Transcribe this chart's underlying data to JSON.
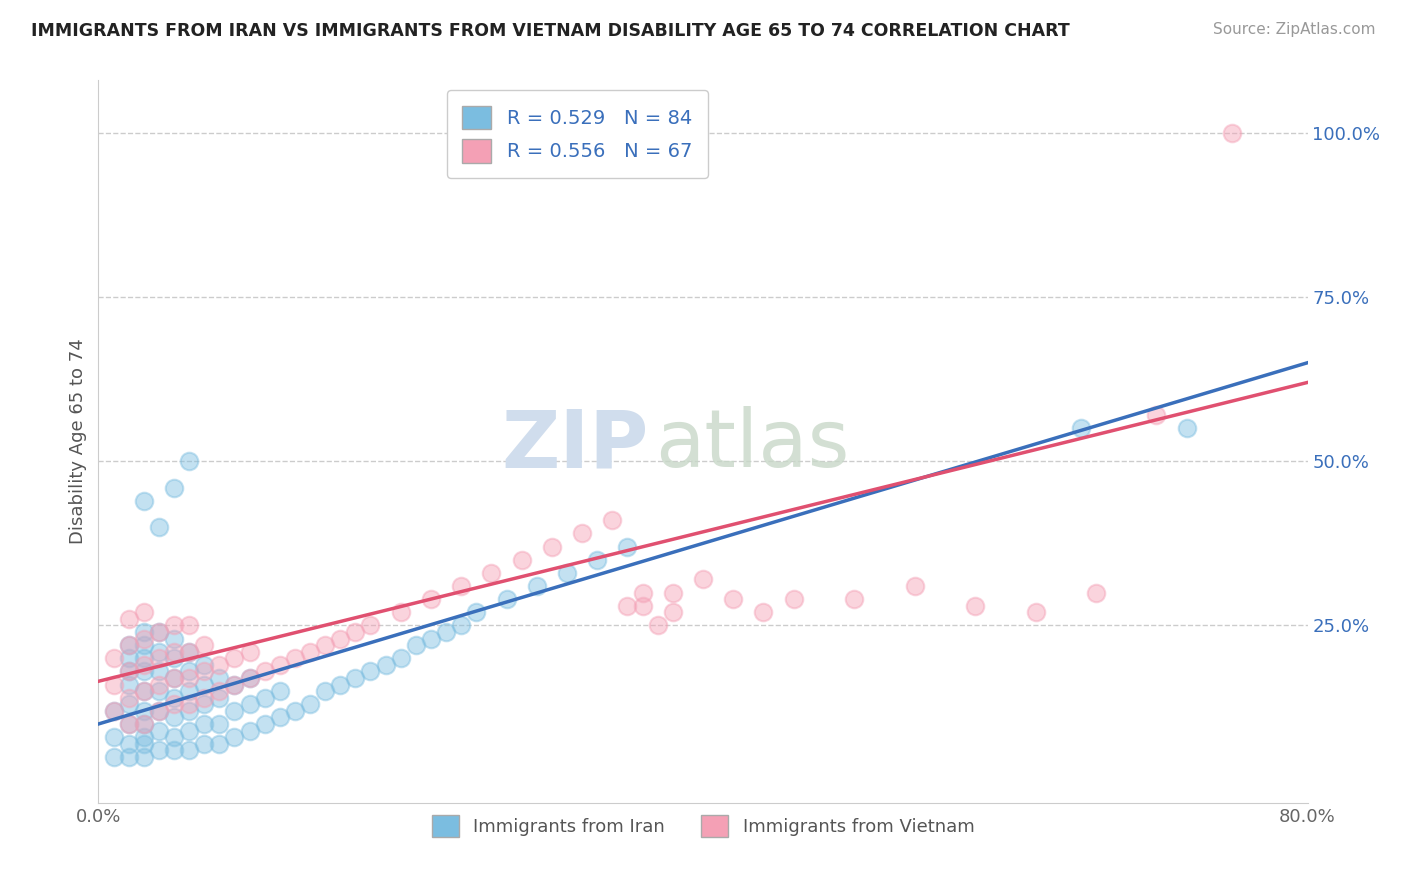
{
  "title": "IMMIGRANTS FROM IRAN VS IMMIGRANTS FROM VIETNAM DISABILITY AGE 65 TO 74 CORRELATION CHART",
  "source": "Source: ZipAtlas.com",
  "ylabel": "Disability Age 65 to 74",
  "xmin": 0.0,
  "xmax": 0.8,
  "ymin": -0.02,
  "ymax": 1.08,
  "xtick_positions": [
    0.0,
    0.8
  ],
  "xtick_labels": [
    "0.0%",
    "80.0%"
  ],
  "ytick_positions": [
    0.25,
    0.5,
    0.75,
    1.0
  ],
  "ytick_labels": [
    "25.0%",
    "50.0%",
    "75.0%",
    "100.0%"
  ],
  "iran_color": "#7bbde0",
  "vietnam_color": "#f4a0b5",
  "iran_line_color": "#3a6fbb",
  "vietnam_line_color": "#e05070",
  "iran_R": 0.529,
  "iran_N": 84,
  "vietnam_R": 0.556,
  "vietnam_N": 67,
  "watermark_zip": "ZIP",
  "watermark_atlas": "atlas",
  "legend_labels": [
    "Immigrants from Iran",
    "Immigrants from Vietnam"
  ],
  "iran_scatter_x": [
    0.01,
    0.01,
    0.01,
    0.02,
    0.02,
    0.02,
    0.02,
    0.02,
    0.02,
    0.02,
    0.02,
    0.03,
    0.03,
    0.03,
    0.03,
    0.03,
    0.03,
    0.03,
    0.03,
    0.03,
    0.03,
    0.04,
    0.04,
    0.04,
    0.04,
    0.04,
    0.04,
    0.04,
    0.05,
    0.05,
    0.05,
    0.05,
    0.05,
    0.05,
    0.05,
    0.06,
    0.06,
    0.06,
    0.06,
    0.06,
    0.06,
    0.07,
    0.07,
    0.07,
    0.07,
    0.07,
    0.08,
    0.08,
    0.08,
    0.08,
    0.09,
    0.09,
    0.09,
    0.1,
    0.1,
    0.1,
    0.11,
    0.11,
    0.12,
    0.12,
    0.13,
    0.14,
    0.15,
    0.16,
    0.17,
    0.18,
    0.19,
    0.2,
    0.21,
    0.22,
    0.23,
    0.24,
    0.25,
    0.27,
    0.29,
    0.31,
    0.33,
    0.35,
    0.65,
    0.72,
    0.03,
    0.04,
    0.05,
    0.06
  ],
  "iran_scatter_y": [
    0.05,
    0.08,
    0.12,
    0.05,
    0.07,
    0.1,
    0.13,
    0.16,
    0.18,
    0.2,
    0.22,
    0.05,
    0.08,
    0.1,
    0.12,
    0.15,
    0.18,
    0.2,
    0.22,
    0.24,
    0.07,
    0.06,
    0.09,
    0.12,
    0.15,
    0.18,
    0.21,
    0.24,
    0.06,
    0.08,
    0.11,
    0.14,
    0.17,
    0.2,
    0.23,
    0.06,
    0.09,
    0.12,
    0.15,
    0.18,
    0.21,
    0.07,
    0.1,
    0.13,
    0.16,
    0.19,
    0.07,
    0.1,
    0.14,
    0.17,
    0.08,
    0.12,
    0.16,
    0.09,
    0.13,
    0.17,
    0.1,
    0.14,
    0.11,
    0.15,
    0.12,
    0.13,
    0.15,
    0.16,
    0.17,
    0.18,
    0.19,
    0.2,
    0.22,
    0.23,
    0.24,
    0.25,
    0.27,
    0.29,
    0.31,
    0.33,
    0.35,
    0.37,
    0.55,
    0.55,
    0.44,
    0.4,
    0.46,
    0.5
  ],
  "vietnam_scatter_x": [
    0.01,
    0.01,
    0.01,
    0.02,
    0.02,
    0.02,
    0.02,
    0.02,
    0.03,
    0.03,
    0.03,
    0.03,
    0.03,
    0.04,
    0.04,
    0.04,
    0.04,
    0.05,
    0.05,
    0.05,
    0.05,
    0.06,
    0.06,
    0.06,
    0.06,
    0.07,
    0.07,
    0.07,
    0.08,
    0.08,
    0.09,
    0.09,
    0.1,
    0.1,
    0.11,
    0.12,
    0.13,
    0.14,
    0.15,
    0.16,
    0.17,
    0.18,
    0.2,
    0.22,
    0.24,
    0.26,
    0.28,
    0.3,
    0.32,
    0.34,
    0.36,
    0.38,
    0.4,
    0.42,
    0.44,
    0.46,
    0.5,
    0.54,
    0.58,
    0.62,
    0.66,
    0.7,
    0.75,
    0.35,
    0.36,
    0.37,
    0.38
  ],
  "vietnam_scatter_y": [
    0.12,
    0.16,
    0.2,
    0.1,
    0.14,
    0.18,
    0.22,
    0.26,
    0.1,
    0.15,
    0.19,
    0.23,
    0.27,
    0.12,
    0.16,
    0.2,
    0.24,
    0.13,
    0.17,
    0.21,
    0.25,
    0.13,
    0.17,
    0.21,
    0.25,
    0.14,
    0.18,
    0.22,
    0.15,
    0.19,
    0.16,
    0.2,
    0.17,
    0.21,
    0.18,
    0.19,
    0.2,
    0.21,
    0.22,
    0.23,
    0.24,
    0.25,
    0.27,
    0.29,
    0.31,
    0.33,
    0.35,
    0.37,
    0.39,
    0.41,
    0.28,
    0.3,
    0.32,
    0.29,
    0.27,
    0.29,
    0.29,
    0.31,
    0.28,
    0.27,
    0.3,
    0.57,
    1.0,
    0.28,
    0.3,
    0.25,
    0.27
  ],
  "iran_line_x0": 0.0,
  "iran_line_y0": 0.1,
  "iran_line_x1": 0.8,
  "iran_line_y1": 0.65,
  "vietnam_line_x0": 0.0,
  "vietnam_line_y0": 0.165,
  "vietnam_line_x1": 0.8,
  "vietnam_line_y1": 0.62
}
